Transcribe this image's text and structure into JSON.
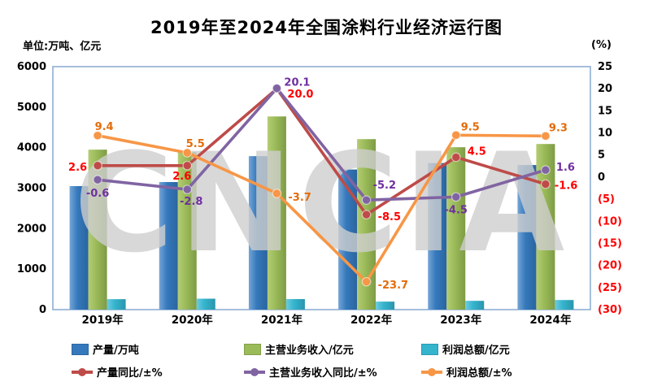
{
  "page": {
    "title": "2019年至2024年全国涂料行业经济运行图",
    "unit_left": "单位:万吨、亿元",
    "unit_right": "(%)",
    "watermark": "CNCIA"
  },
  "chart_data": {
    "type": "combo-bar-line",
    "categories": [
      "2019年",
      "2020年",
      "2021年",
      "2022年",
      "2023年",
      "2024年"
    ],
    "left_axis": {
      "title": "单位:万吨、亿元",
      "min": 0,
      "max": 6000,
      "step": 1000,
      "tick_labels": [
        "6000",
        "5000",
        "4000",
        "3000",
        "2000",
        "1000",
        "0"
      ]
    },
    "right_axis": {
      "title": "(%)",
      "min": -30,
      "max": 25,
      "step": 5,
      "tick_labels": [
        "25",
        "20",
        "15",
        "10",
        "5",
        "0",
        "(5)",
        "(10)",
        "(15)",
        "(20)",
        "(25)",
        "(30)"
      ],
      "tick_values": [
        25,
        20,
        15,
        10,
        5,
        0,
        -5,
        -10,
        -15,
        -20,
        -25,
        -30
      ],
      "negative_color": "#ff0000",
      "positive_color": "#000000"
    },
    "grid": false,
    "legend_position": "bottom",
    "series": [
      {
        "name": "产量/万吨",
        "type": "bar",
        "axis": "left",
        "color": "#3579BC",
        "gradient": [
          "#75A5D6",
          "#3579BC",
          "#2B649F"
        ],
        "values": [
          3050,
          3150,
          3790,
          3460,
          3620,
          3570
        ]
      },
      {
        "name": "主营业务收入/亿元",
        "type": "bar",
        "axis": "left",
        "color": "#9BBB59",
        "gradient": [
          "#B4CC74",
          "#9BBB59",
          "#7E9B45"
        ],
        "values": [
          3950,
          3890,
          4770,
          4210,
          4010,
          4090
        ]
      },
      {
        "name": "利润总额/亿元",
        "type": "bar",
        "axis": "left",
        "color": "#35B4CE",
        "gradient": [
          "#6BCBDE",
          "#35B4CE",
          "#2A95AC"
        ],
        "values": [
          258,
          270,
          260,
          198,
          217,
          237
        ]
      },
      {
        "name": "产量同比/±%",
        "type": "line",
        "axis": "right",
        "color": "#BE4B48",
        "label_color": "#FF0000",
        "values": [
          2.6,
          2.6,
          20.0,
          -8.5,
          4.5,
          -1.6
        ],
        "labels": [
          "2.6",
          "2.6",
          "20.0",
          "-8.5",
          "4.5",
          "-1.6"
        ],
        "label_offsets": [
          [
            -13,
            3,
            "e"
          ],
          [
            5,
            14,
            "e"
          ],
          [
            13,
            8,
            "s"
          ],
          [
            14,
            4,
            "s"
          ],
          [
            14,
            -6,
            "s"
          ],
          [
            11,
            3,
            "s"
          ]
        ]
      },
      {
        "name": "主营业务收入同比/±%",
        "type": "line",
        "axis": "right",
        "color": "#8064A2",
        "label_color": "#7030A0",
        "values": [
          -0.6,
          -2.8,
          20.1,
          -5.2,
          -4.5,
          1.6
        ],
        "labels": [
          "-0.6",
          "-2.8",
          "20.1",
          "-5.2",
          "-4.5",
          "1.6"
        ],
        "label_offsets": [
          [
            0,
            18,
            "m"
          ],
          [
            5,
            16,
            "m"
          ],
          [
            9,
            -6,
            "s"
          ],
          [
            8,
            -17,
            "s"
          ],
          [
            0,
            17,
            "m"
          ],
          [
            13,
            -2,
            "s"
          ]
        ]
      },
      {
        "name": "利润总额/±%",
        "type": "line",
        "axis": "right",
        "color": "#F79646",
        "label_color": "#E46C0A",
        "values": [
          9.4,
          5.5,
          -3.7,
          -23.7,
          9.5,
          9.3
        ],
        "labels": [
          "9.4",
          "5.5",
          "-3.7",
          "-23.7",
          "9.5",
          "9.3"
        ],
        "label_offsets": [
          [
            8,
            -10,
            "m"
          ],
          [
            10,
            -10,
            "m"
          ],
          [
            14,
            6,
            "s"
          ],
          [
            14,
            5,
            "s"
          ],
          [
            6,
            -9,
            "s"
          ],
          [
            4,
            -9,
            "s"
          ]
        ]
      }
    ],
    "title": "2019年至2024年全国涂料行业经济运行图",
    "watermark_text": "CNCIA"
  }
}
